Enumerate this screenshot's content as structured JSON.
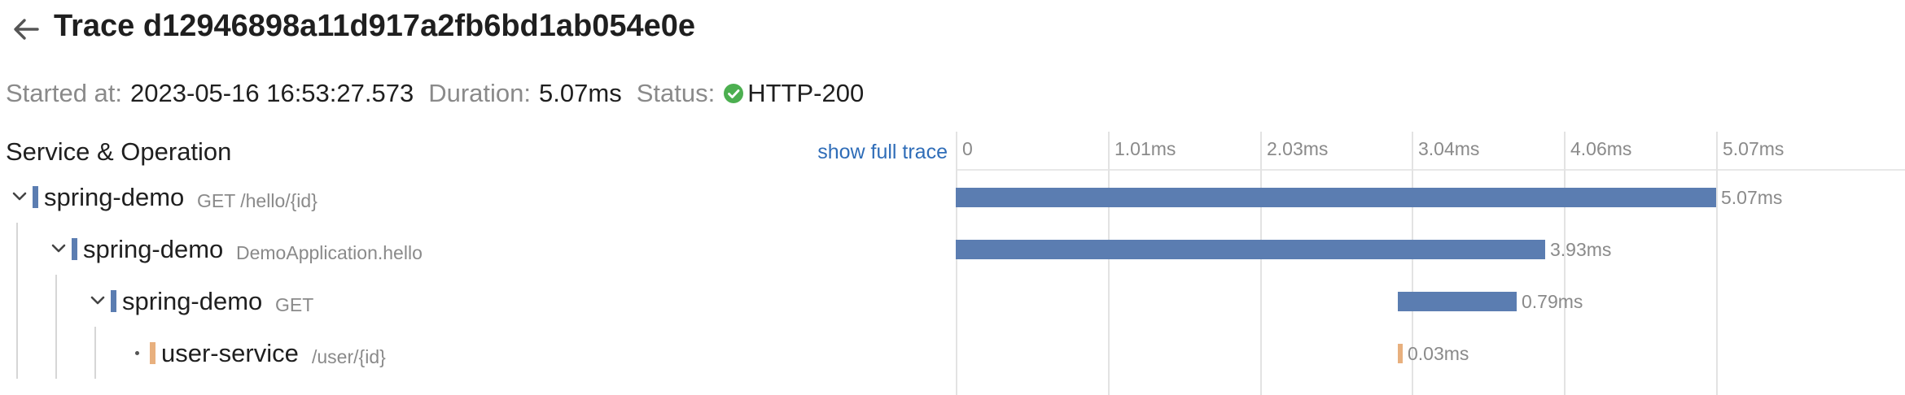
{
  "header": {
    "title": "Trace d12946898a11d917a2fb6bd1ab054e0e"
  },
  "meta": {
    "started_label": "Started at:",
    "started_value": "2023-05-16 16:53:27.573",
    "duration_label": "Duration:",
    "duration_value": "5.07ms",
    "status_label": "Status:",
    "status_value": "HTTP-200",
    "status_icon": "check-circle-icon",
    "status_color": "#4caf50"
  },
  "tree": {
    "header": "Service & Operation",
    "show_full_trace": "show full trace"
  },
  "timeline": {
    "ticks": [
      "0",
      "1.01ms",
      "2.03ms",
      "3.04ms",
      "4.06ms",
      "5.07ms"
    ]
  },
  "spans": [
    {
      "service": "spring-demo",
      "operation": "GET /hello/{id}",
      "duration": "5.07ms",
      "depth": 0,
      "expanded": true,
      "color": "#5b7db1"
    },
    {
      "service": "spring-demo",
      "operation": "DemoApplication.hello",
      "duration": "3.93ms",
      "depth": 1,
      "expanded": true,
      "color": "#5b7db1"
    },
    {
      "service": "spring-demo",
      "operation": "GET",
      "duration": "0.79ms",
      "depth": 2,
      "expanded": true,
      "color": "#5b7db1"
    },
    {
      "service": "user-service",
      "operation": "/user/{id}",
      "duration": "0.03ms",
      "depth": 3,
      "expanded": false,
      "color": "#e8b07e"
    }
  ]
}
